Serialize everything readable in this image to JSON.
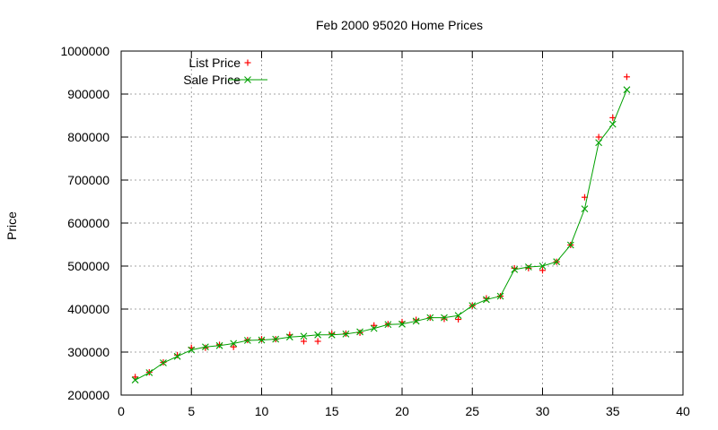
{
  "chart_data": {
    "type": "line",
    "title": "Feb 2000 95020 Home Prices",
    "xlabel": "",
    "ylabel": "Price",
    "xlim": [
      0,
      40
    ],
    "ylim": [
      200000,
      1000000
    ],
    "xticks": [
      0,
      5,
      10,
      15,
      20,
      25,
      30,
      35,
      40
    ],
    "yticks": [
      200000,
      300000,
      400000,
      500000,
      600000,
      700000,
      800000,
      900000,
      1000000
    ],
    "grid": true,
    "legend_position": "top-left",
    "series": [
      {
        "name": "List Price",
        "style": "points",
        "marker": "plus",
        "color": "#ff0000",
        "x": [
          1,
          2,
          3,
          4,
          5,
          6,
          7,
          8,
          9,
          10,
          11,
          12,
          13,
          14,
          15,
          16,
          17,
          18,
          19,
          20,
          21,
          22,
          23,
          24,
          25,
          26,
          27,
          28,
          29,
          30,
          31,
          32,
          33,
          34,
          35,
          36
        ],
        "y": [
          242000,
          253000,
          276000,
          293000,
          310000,
          310000,
          317000,
          312000,
          328000,
          330000,
          330000,
          340000,
          325000,
          325000,
          343000,
          343000,
          345000,
          362000,
          365000,
          370000,
          375000,
          380000,
          377000,
          376000,
          408000,
          425000,
          430000,
          495000,
          495000,
          490000,
          510000,
          549000,
          660000,
          800000,
          845000,
          940000
        ]
      },
      {
        "name": "Sale Price",
        "style": "linespoints",
        "marker": "cross",
        "color": "#00a000",
        "x": [
          1,
          2,
          3,
          4,
          5,
          6,
          7,
          8,
          9,
          10,
          11,
          12,
          13,
          14,
          15,
          16,
          17,
          18,
          19,
          20,
          21,
          22,
          23,
          24,
          25,
          26,
          27,
          28,
          29,
          30,
          31,
          32,
          33,
          34,
          35,
          36
        ],
        "y": [
          235000,
          252000,
          275000,
          290000,
          305000,
          312000,
          315000,
          320000,
          327000,
          328000,
          330000,
          335000,
          337000,
          340000,
          340000,
          342000,
          347000,
          355000,
          364000,
          365000,
          372000,
          380000,
          380000,
          385000,
          408000,
          422000,
          430000,
          492000,
          498000,
          500000,
          510000,
          549000,
          633000,
          787000,
          830000,
          910000
        ]
      }
    ]
  }
}
